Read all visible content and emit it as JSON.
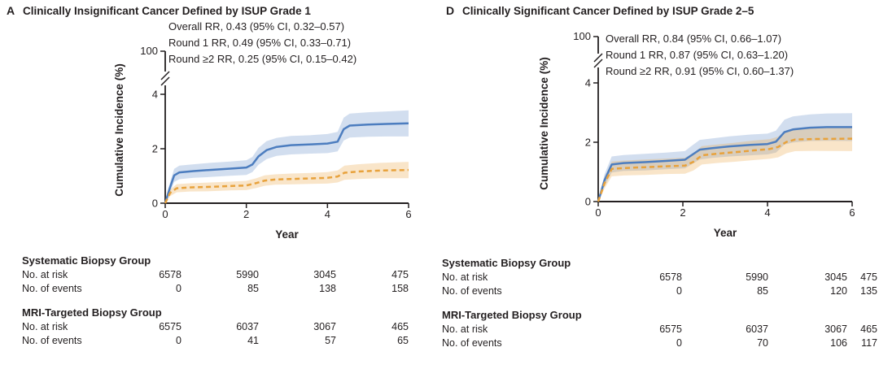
{
  "chart_data": [
    {
      "type": "line",
      "panel_letter": "A",
      "title": "Clinically Insignificant Cancer Defined by ISUP Grade 1",
      "xlabel": "Year",
      "ylabel": "Cumulative Incidence (%)",
      "xlim": [
        0,
        6
      ],
      "xticks": [
        0,
        2,
        4,
        6
      ],
      "yticks_visible": [
        0,
        2,
        4
      ],
      "y_axis_break": {
        "upper_tick_label": "100"
      },
      "grid": "off",
      "annotations": [
        "Overall RR, 0.43 (95% CI, 0.32–0.57)",
        "Round 1 RR, 0.49 (95% CI, 0.33–0.71)",
        "Round ≥2 RR, 0.25 (95% CI, 0.15–0.42)"
      ],
      "series": [
        {
          "name": "Systematic Biopsy Group",
          "line_style": "solid",
          "color": "#4c7dbf",
          "band_color": "rgba(76,125,191,0.25)",
          "points_pct": [
            [
              0,
              0,
              0.05
            ],
            [
              0.1,
              0.5,
              0.18
            ],
            [
              0.22,
              1.02,
              0.24
            ],
            [
              0.35,
              1.13,
              0.25
            ],
            [
              0.7,
              1.18,
              0.25
            ],
            [
              1.1,
              1.22,
              0.26
            ],
            [
              1.6,
              1.27,
              0.26
            ],
            [
              2.0,
              1.31,
              0.27
            ],
            [
              2.15,
              1.42,
              0.28
            ],
            [
              2.3,
              1.72,
              0.31
            ],
            [
              2.5,
              1.95,
              0.33
            ],
            [
              2.75,
              2.07,
              0.33
            ],
            [
              3.1,
              2.13,
              0.34
            ],
            [
              3.6,
              2.16,
              0.34
            ],
            [
              4.0,
              2.19,
              0.35
            ],
            [
              4.25,
              2.26,
              0.36
            ],
            [
              4.4,
              2.72,
              0.42
            ],
            [
              4.55,
              2.85,
              0.44
            ],
            [
              5.0,
              2.89,
              0.45
            ],
            [
              5.45,
              2.91,
              0.46
            ],
            [
              6,
              2.93,
              0.48
            ]
          ]
        },
        {
          "name": "MRI-Targeted Biopsy Group",
          "line_style": "dashed",
          "color": "#e8a23c",
          "band_color": "rgba(232,162,60,0.28)",
          "points_pct": [
            [
              0,
              0,
              0.04
            ],
            [
              0.12,
              0.38,
              0.12
            ],
            [
              0.28,
              0.55,
              0.15
            ],
            [
              0.6,
              0.58,
              0.15
            ],
            [
              1.1,
              0.6,
              0.16
            ],
            [
              1.6,
              0.63,
              0.16
            ],
            [
              2.0,
              0.65,
              0.17
            ],
            [
              2.25,
              0.74,
              0.18
            ],
            [
              2.45,
              0.83,
              0.19
            ],
            [
              2.7,
              0.87,
              0.19
            ],
            [
              3.1,
              0.89,
              0.2
            ],
            [
              3.6,
              0.91,
              0.2
            ],
            [
              4.0,
              0.93,
              0.21
            ],
            [
              4.25,
              0.98,
              0.22
            ],
            [
              4.42,
              1.12,
              0.26
            ],
            [
              4.75,
              1.16,
              0.27
            ],
            [
              5.3,
              1.2,
              0.28
            ],
            [
              6,
              1.22,
              0.3
            ]
          ]
        }
      ],
      "risk_table": {
        "groups": [
          {
            "name": "Systematic Biopsy Group",
            "rows": [
              {
                "label": "No. at risk",
                "values": [
                  "6578",
                  "5990",
                  "3045",
                  "475"
                ]
              },
              {
                "label": "No. of events",
                "values": [
                  "0",
                  "85",
                  "138",
                  "158"
                ]
              }
            ]
          },
          {
            "name": "MRI-Targeted Biopsy Group",
            "rows": [
              {
                "label": "No. at risk",
                "values": [
                  "6575",
                  "6037",
                  "3067",
                  "465"
                ]
              },
              {
                "label": "No. of events",
                "values": [
                  "0",
                  "41",
                  "57",
                  "65"
                ]
              }
            ]
          }
        ]
      }
    },
    {
      "type": "line",
      "panel_letter": "D",
      "title": "Clinically Significant Cancer Defined by ISUP Grade 2–5",
      "xlabel": "Year",
      "ylabel": "Cumulative Incidence (%)",
      "xlim": [
        0,
        6
      ],
      "xticks": [
        0,
        2,
        4,
        6
      ],
      "yticks_visible": [
        0,
        2,
        4
      ],
      "y_axis_break": {
        "upper_tick_label": "100"
      },
      "grid": "off",
      "annotations": [
        "Overall RR, 0.84 (95% CI, 0.66–1.07)",
        "Round 1 RR, 0.87 (95% CI, 0.63–1.20)",
        "Round ≥2 RR, 0.91 (95% CI, 0.60–1.37)"
      ],
      "series": [
        {
          "name": "Systematic Biopsy Group",
          "line_style": "solid",
          "color": "#4c7dbf",
          "band_color": "rgba(76,125,191,0.25)",
          "points_pct": [
            [
              0,
              0,
              0.05
            ],
            [
              0.15,
              0.72,
              0.2
            ],
            [
              0.32,
              1.25,
              0.27
            ],
            [
              0.6,
              1.3,
              0.27
            ],
            [
              1.1,
              1.33,
              0.28
            ],
            [
              1.6,
              1.37,
              0.28
            ],
            [
              2.05,
              1.41,
              0.29
            ],
            [
              2.2,
              1.56,
              0.31
            ],
            [
              2.4,
              1.75,
              0.33
            ],
            [
              2.7,
              1.8,
              0.33
            ],
            [
              3.1,
              1.86,
              0.34
            ],
            [
              3.6,
              1.91,
              0.35
            ],
            [
              4.0,
              1.94,
              0.35
            ],
            [
              4.2,
              2.02,
              0.37
            ],
            [
              4.4,
              2.34,
              0.42
            ],
            [
              4.6,
              2.43,
              0.44
            ],
            [
              5.0,
              2.49,
              0.45
            ],
            [
              5.4,
              2.51,
              0.46
            ],
            [
              6,
              2.51,
              0.47
            ]
          ]
        },
        {
          "name": "MRI-Targeted Biopsy Group",
          "line_style": "dashed",
          "color": "#e8a23c",
          "band_color": "rgba(232,162,60,0.28)",
          "points_pct": [
            [
              0,
              0,
              0.04
            ],
            [
              0.15,
              0.62,
              0.18
            ],
            [
              0.32,
              1.1,
              0.25
            ],
            [
              0.6,
              1.13,
              0.25
            ],
            [
              1.1,
              1.16,
              0.26
            ],
            [
              1.6,
              1.19,
              0.26
            ],
            [
              2.05,
              1.21,
              0.27
            ],
            [
              2.25,
              1.34,
              0.29
            ],
            [
              2.45,
              1.56,
              0.31
            ],
            [
              2.8,
              1.61,
              0.31
            ],
            [
              3.2,
              1.66,
              0.32
            ],
            [
              3.7,
              1.73,
              0.33
            ],
            [
              4.05,
              1.77,
              0.33
            ],
            [
              4.25,
              1.84,
              0.35
            ],
            [
              4.45,
              2.01,
              0.38
            ],
            [
              4.65,
              2.09,
              0.39
            ],
            [
              5.1,
              2.11,
              0.4
            ],
            [
              6,
              2.12,
              0.42
            ]
          ]
        }
      ],
      "risk_table": {
        "groups": [
          {
            "name": "Systematic Biopsy Group",
            "rows": [
              {
                "label": "No. at risk",
                "values": [
                  "6578",
                  "5990",
                  "3045",
                  "475"
                ]
              },
              {
                "label": "No. of events",
                "values": [
                  "0",
                  "85",
                  "120",
                  "135"
                ]
              }
            ]
          },
          {
            "name": "MRI-Targeted Biopsy Group",
            "rows": [
              {
                "label": "No. at risk",
                "values": [
                  "6575",
                  "6037",
                  "3067",
                  "465"
                ]
              },
              {
                "label": "No. of events",
                "values": [
                  "0",
                  "70",
                  "106",
                  "117"
                ]
              }
            ]
          }
        ]
      }
    }
  ],
  "colors": {
    "text": "#231f20",
    "systematic_line": "#4c7dbf",
    "mri_line": "#e8a23c"
  }
}
